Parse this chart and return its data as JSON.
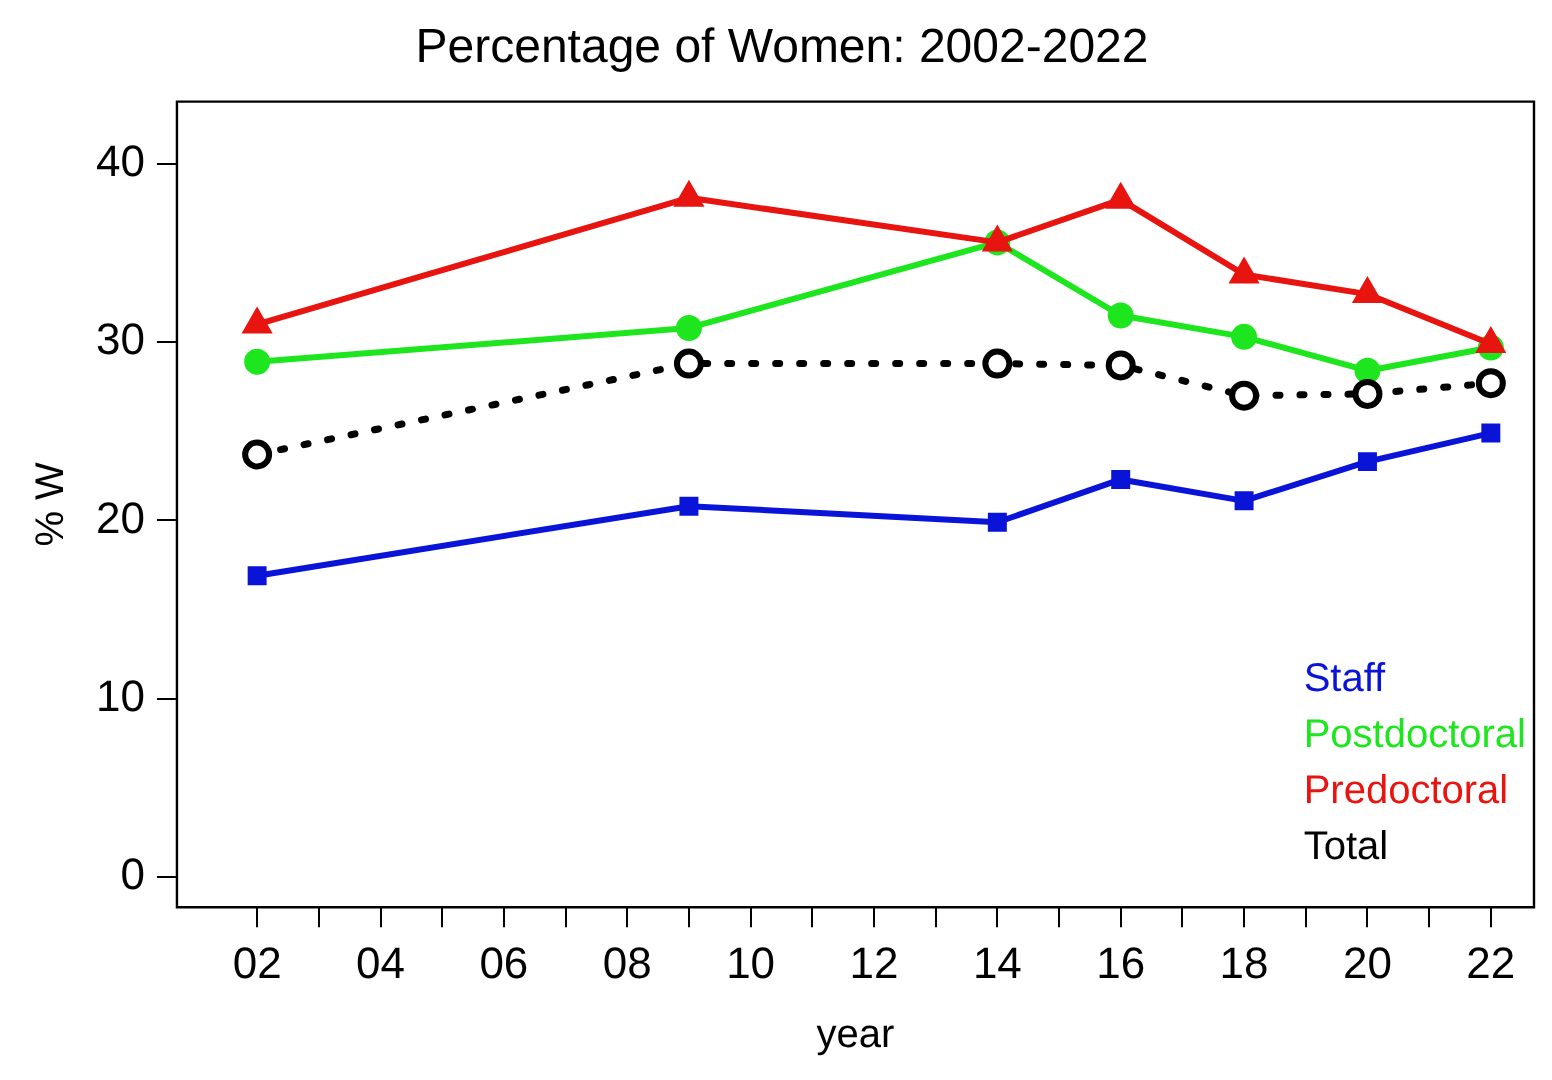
{
  "chart_data": {
    "type": "line",
    "title": "Percentage of Women: 2002-2022",
    "xlabel": "year",
    "ylabel": "% W",
    "x": [
      2,
      9,
      14,
      16,
      18,
      20,
      22
    ],
    "xlim": [
      0.7,
      22.7
    ],
    "xticks": [
      {
        "value": 2,
        "label": "02"
      },
      {
        "value": 3,
        "label": null
      },
      {
        "value": 4,
        "label": "04"
      },
      {
        "value": 5,
        "label": null
      },
      {
        "value": 6,
        "label": "06"
      },
      {
        "value": 7,
        "label": null
      },
      {
        "value": 8,
        "label": "08"
      },
      {
        "value": 9,
        "label": null
      },
      {
        "value": 10,
        "label": "10"
      },
      {
        "value": 11,
        "label": null
      },
      {
        "value": 12,
        "label": "12"
      },
      {
        "value": 13,
        "label": null
      },
      {
        "value": 14,
        "label": "14"
      },
      {
        "value": 15,
        "label": null
      },
      {
        "value": 16,
        "label": "16"
      },
      {
        "value": 17,
        "label": null
      },
      {
        "value": 18,
        "label": "18"
      },
      {
        "value": 19,
        "label": null
      },
      {
        "value": 20,
        "label": "20"
      },
      {
        "value": 21,
        "label": null
      },
      {
        "value": 22,
        "label": "22"
      }
    ],
    "ylim": [
      -1.7,
      43.5
    ],
    "yticks": [
      0,
      10,
      20,
      30,
      40
    ],
    "grid": false,
    "legend": "bottom right",
    "series": [
      {
        "name": "Staff",
        "color": "#0a14d8",
        "marker": "square",
        "line_style": "solid",
        "values": [
          16.9,
          20.8,
          19.9,
          22.3,
          21.1,
          23.3,
          24.9
        ]
      },
      {
        "name": "Postdoctoral",
        "color": "#1ee61e",
        "marker": "circle",
        "line_style": "solid",
        "values": [
          28.9,
          30.8,
          35.6,
          31.5,
          30.3,
          28.4,
          29.7
        ]
      },
      {
        "name": "Predoctoral",
        "color": "#e8140f",
        "marker": "triangle",
        "line_style": "solid",
        "values": [
          31.0,
          38.1,
          35.6,
          38.0,
          33.8,
          32.7,
          29.9
        ]
      },
      {
        "name": "Total",
        "color": "#000000",
        "marker": "circle",
        "line_style": "dotted",
        "values": [
          23.7,
          28.8,
          28.8,
          28.7,
          27.0,
          27.1,
          27.7
        ]
      }
    ]
  }
}
